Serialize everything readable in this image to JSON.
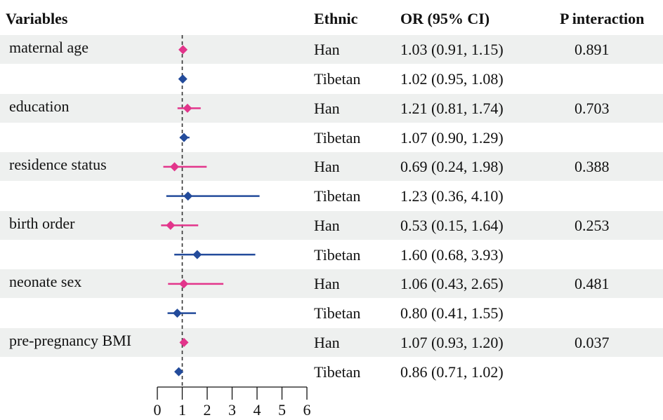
{
  "headers": {
    "variables": "Variables",
    "ethnic": "Ethnic",
    "or": "OR (95% CI)",
    "p": "P interaction"
  },
  "rows": [
    {
      "variable": "maternal age",
      "ethnic": "Han",
      "or_text": "1.03 (0.91, 1.15)",
      "p": "0.891"
    },
    {
      "variable": "",
      "ethnic": "Tibetan",
      "or_text": "1.02 (0.95, 1.08)",
      "p": ""
    },
    {
      "variable": "education",
      "ethnic": "Han",
      "or_text": "1.21 (0.81, 1.74)",
      "p": "0.703"
    },
    {
      "variable": "",
      "ethnic": "Tibetan",
      "or_text": "1.07 (0.90, 1.29)",
      "p": ""
    },
    {
      "variable": "residence status",
      "ethnic": "Han",
      "or_text": "0.69 (0.24, 1.98)",
      "p": "0.388"
    },
    {
      "variable": "",
      "ethnic": "Tibetan",
      "or_text": "1.23 (0.36, 4.10)",
      "p": ""
    },
    {
      "variable": "birth order",
      "ethnic": "Han",
      "or_text": "0.53 (0.15, 1.64)",
      "p": "0.253"
    },
    {
      "variable": "",
      "ethnic": "Tibetan",
      "or_text": "1.60 (0.68, 3.93)",
      "p": ""
    },
    {
      "variable": "neonate sex",
      "ethnic": "Han",
      "or_text": "1.06 (0.43, 2.65)",
      "p": "0.481"
    },
    {
      "variable": "",
      "ethnic": "Tibetan",
      "or_text": "0.80 (0.41, 1.55)",
      "p": ""
    },
    {
      "variable": "pre-pregnancy BMI",
      "ethnic": "Han",
      "or_text": "1.07 (0.93, 1.20)",
      "p": "0.037"
    },
    {
      "variable": "",
      "ethnic": "Tibetan",
      "or_text": "0.86 (0.71, 1.02)",
      "p": ""
    }
  ],
  "colors": {
    "Han": "#e2358b",
    "Tibetan": "#234b9b",
    "reference_line": "#333333",
    "band": "#eef0ef"
  },
  "chart_data": {
    "type": "forest",
    "title": "",
    "xlabel": "",
    "ylabel": "",
    "xlim": [
      0,
      6
    ],
    "xticks": [
      0,
      1,
      2,
      3,
      4,
      5,
      6
    ],
    "reference_line": 1,
    "grid": false,
    "series": [
      {
        "name": "Han",
        "categories": [
          "maternal age",
          "education",
          "residence status",
          "birth order",
          "neonate sex",
          "pre-pregnancy BMI"
        ],
        "or": [
          1.03,
          1.21,
          0.69,
          0.53,
          1.06,
          1.07
        ],
        "lower": [
          0.91,
          0.81,
          0.24,
          0.15,
          0.43,
          0.93
        ],
        "upper": [
          1.15,
          1.74,
          1.98,
          1.64,
          2.65,
          1.2
        ]
      },
      {
        "name": "Tibetan",
        "categories": [
          "maternal age",
          "education",
          "residence status",
          "birth order",
          "neonate sex",
          "pre-pregnancy BMI"
        ],
        "or": [
          1.02,
          1.07,
          1.23,
          1.6,
          0.8,
          0.86
        ],
        "lower": [
          0.95,
          0.9,
          0.36,
          0.68,
          0.41,
          0.71
        ],
        "upper": [
          1.08,
          1.29,
          4.1,
          3.93,
          1.55,
          1.02
        ]
      }
    ]
  }
}
